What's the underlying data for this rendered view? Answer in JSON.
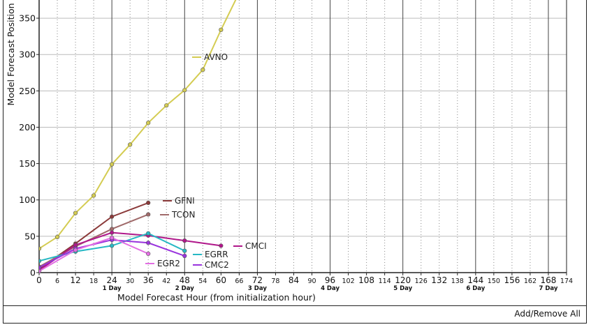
{
  "chart_data": {
    "type": "line",
    "xlabel": "Model Forecast Hour (from initialization hour)",
    "ylabel": "Model Forecast Position",
    "xlim": [
      0,
      174
    ],
    "ylim": [
      0,
      375
    ],
    "x_ticks": [
      0,
      6,
      12,
      18,
      24,
      30,
      36,
      42,
      48,
      54,
      60,
      66,
      72,
      78,
      84,
      90,
      96,
      102,
      108,
      114,
      120,
      126,
      132,
      138,
      144,
      150,
      156,
      162,
      168,
      174
    ],
    "y_ticks": [
      0,
      50,
      100,
      150,
      200,
      250,
      300,
      350
    ],
    "day_labels": [
      {
        "hour": 24,
        "label": "1 Day"
      },
      {
        "hour": 48,
        "label": "2 Day"
      },
      {
        "hour": 72,
        "label": "3 Day"
      },
      {
        "hour": 96,
        "label": "4 Day"
      },
      {
        "hour": 120,
        "label": "5 Day"
      },
      {
        "hour": 144,
        "label": "6 Day"
      },
      {
        "hour": 168,
        "label": "7 Day"
      }
    ],
    "grid": true,
    "series": [
      {
        "name": "AVNO",
        "color": "#d4cc52",
        "x": [
          0,
          6,
          12,
          18,
          24,
          30,
          36,
          42,
          48,
          54,
          60,
          66
        ],
        "y": [
          33,
          49,
          82,
          106,
          149,
          176,
          206,
          230,
          251,
          279,
          334,
          385
        ],
        "points": 11
      },
      {
        "name": "GFNI",
        "color": "#8b3a3a",
        "x": [
          0,
          12,
          24,
          36
        ],
        "y": [
          5,
          40,
          77,
          96
        ]
      },
      {
        "name": "TCON",
        "color": "#a06a6a",
        "x": [
          0,
          12,
          24,
          36
        ],
        "y": [
          8,
          36,
          60,
          80
        ]
      },
      {
        "name": "CMCI",
        "color": "#b0178a",
        "x": [
          0,
          12,
          24,
          36,
          48,
          60
        ],
        "y": [
          3,
          38,
          55,
          51,
          44,
          37
        ]
      },
      {
        "name": "EGRR",
        "color": "#27b8c4",
        "x": [
          0,
          12,
          24,
          36,
          48
        ],
        "y": [
          16,
          29,
          37,
          54,
          30
        ]
      },
      {
        "name": "CMC2",
        "color": "#9933dd",
        "x": [
          0,
          12,
          24,
          36,
          48
        ],
        "y": [
          7,
          33,
          45,
          41,
          23
        ]
      },
      {
        "name": "EGR2",
        "color": "#e36ee3",
        "x": [
          0,
          12,
          24,
          36
        ],
        "y": [
          2,
          31,
          48,
          26
        ]
      }
    ]
  },
  "footer": {
    "add_remove_label": "Add/Remove All"
  },
  "colors": {
    "grid_solid": "#444444",
    "grid_dotted": "#888888",
    "background": "#ffffff"
  }
}
